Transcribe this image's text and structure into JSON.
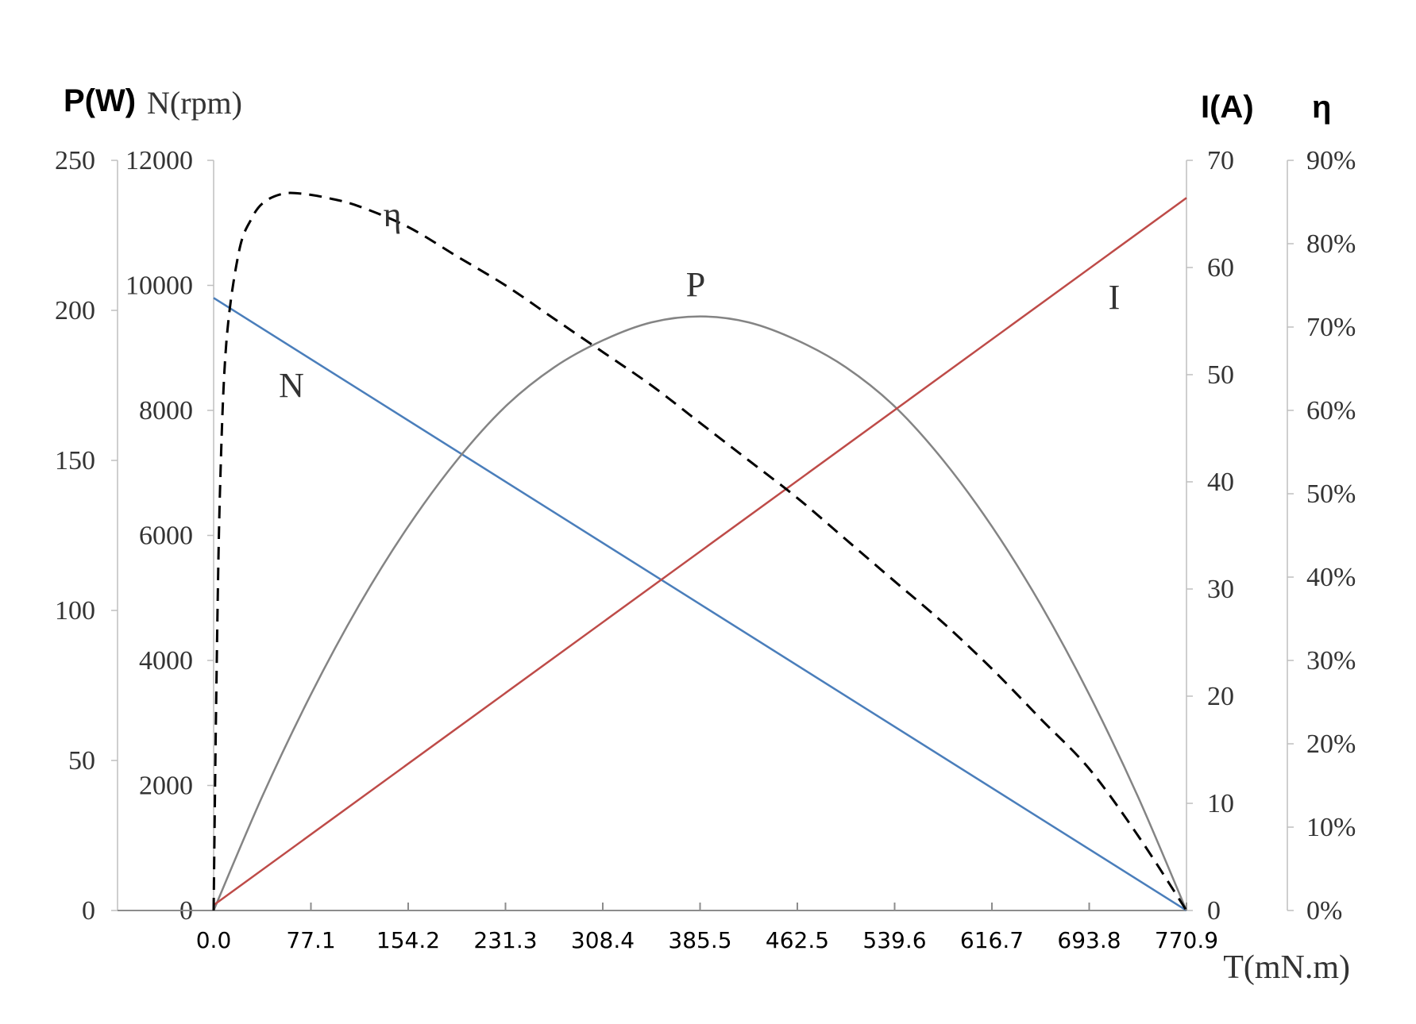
{
  "chart_data": {
    "type": "line",
    "xlabel": "T(mN.m)",
    "x_ticks": [
      "0.0",
      "77.1",
      "154.2",
      "231.3",
      "308.4",
      "385.5",
      "462.5",
      "539.6",
      "616.7",
      "693.8",
      "770.9"
    ],
    "xlim": [
      0,
      770.9
    ],
    "axes": {
      "P": {
        "title": "P(W)",
        "min": 0,
        "max": 250,
        "ticks": [
          "0",
          "50",
          "100",
          "150",
          "200",
          "250"
        ]
      },
      "N": {
        "title": "N(rpm)",
        "min": 0,
        "max": 12000,
        "ticks": [
          "0",
          "2000",
          "4000",
          "6000",
          "8000",
          "10000",
          "12000"
        ]
      },
      "I": {
        "title": "I(A)",
        "min": 0,
        "max": 70,
        "ticks": [
          "0",
          "10",
          "20",
          "30",
          "40",
          "50",
          "60",
          "70"
        ]
      },
      "eta": {
        "title": "η",
        "min": 0,
        "max": 90,
        "ticks": [
          "0%",
          "10%",
          "20%",
          "30%",
          "40%",
          "50%",
          "60%",
          "70%",
          "80%",
          "90%"
        ]
      }
    },
    "series": [
      {
        "name": "N",
        "axis": "N",
        "color": "#4a7ebb",
        "style": "solid",
        "x": [
          0,
          770.9
        ],
        "y": [
          9800,
          0
        ]
      },
      {
        "name": "P",
        "axis": "P",
        "color": "#848484",
        "style": "solid",
        "x": [
          0,
          38.5,
          77.1,
          115.6,
          154.2,
          192.7,
          231.3,
          269.8,
          308.4,
          346.9,
          385.5,
          424,
          462.5,
          501.1,
          539.6,
          578.2,
          616.7,
          655.3,
          693.8,
          732.4,
          770.9
        ],
        "y": [
          0,
          38,
          72,
          102,
          128,
          150,
          168,
          181,
          190,
          196,
          198,
          196,
          190,
          181,
          168,
          150,
          128,
          102,
          72,
          38,
          0
        ]
      },
      {
        "name": "I",
        "axis": "I",
        "color": "#be4b48",
        "style": "solid",
        "x": [
          0,
          770.9
        ],
        "y": [
          0.5,
          66.5
        ]
      },
      {
        "name": "η",
        "axis": "eta",
        "color": "#000000",
        "style": "dashed",
        "x": [
          0,
          2,
          5,
          10,
          20,
          30,
          40,
          55,
          70,
          90,
          115,
          154.2,
          192.7,
          231.3,
          269.8,
          308.4,
          346.9,
          385.5,
          424,
          462.5,
          501.1,
          539.6,
          578.2,
          616.7,
          655.3,
          693.8,
          732.4,
          770.9
        ],
        "y": [
          0,
          25,
          50,
          68,
          79,
          83,
          85,
          86,
          86,
          85.5,
          84.5,
          82,
          78.5,
          75,
          71,
          67,
          63,
          58.5,
          54,
          49.5,
          44.5,
          39.5,
          34.5,
          29,
          23,
          17,
          9,
          0
        ]
      }
    ],
    "curve_labels": [
      {
        "text": "N",
        "series": "N"
      },
      {
        "text": "P",
        "series": "P"
      },
      {
        "text": "I",
        "series": "I"
      },
      {
        "text": "η",
        "series": "η"
      }
    ],
    "grid": false
  }
}
